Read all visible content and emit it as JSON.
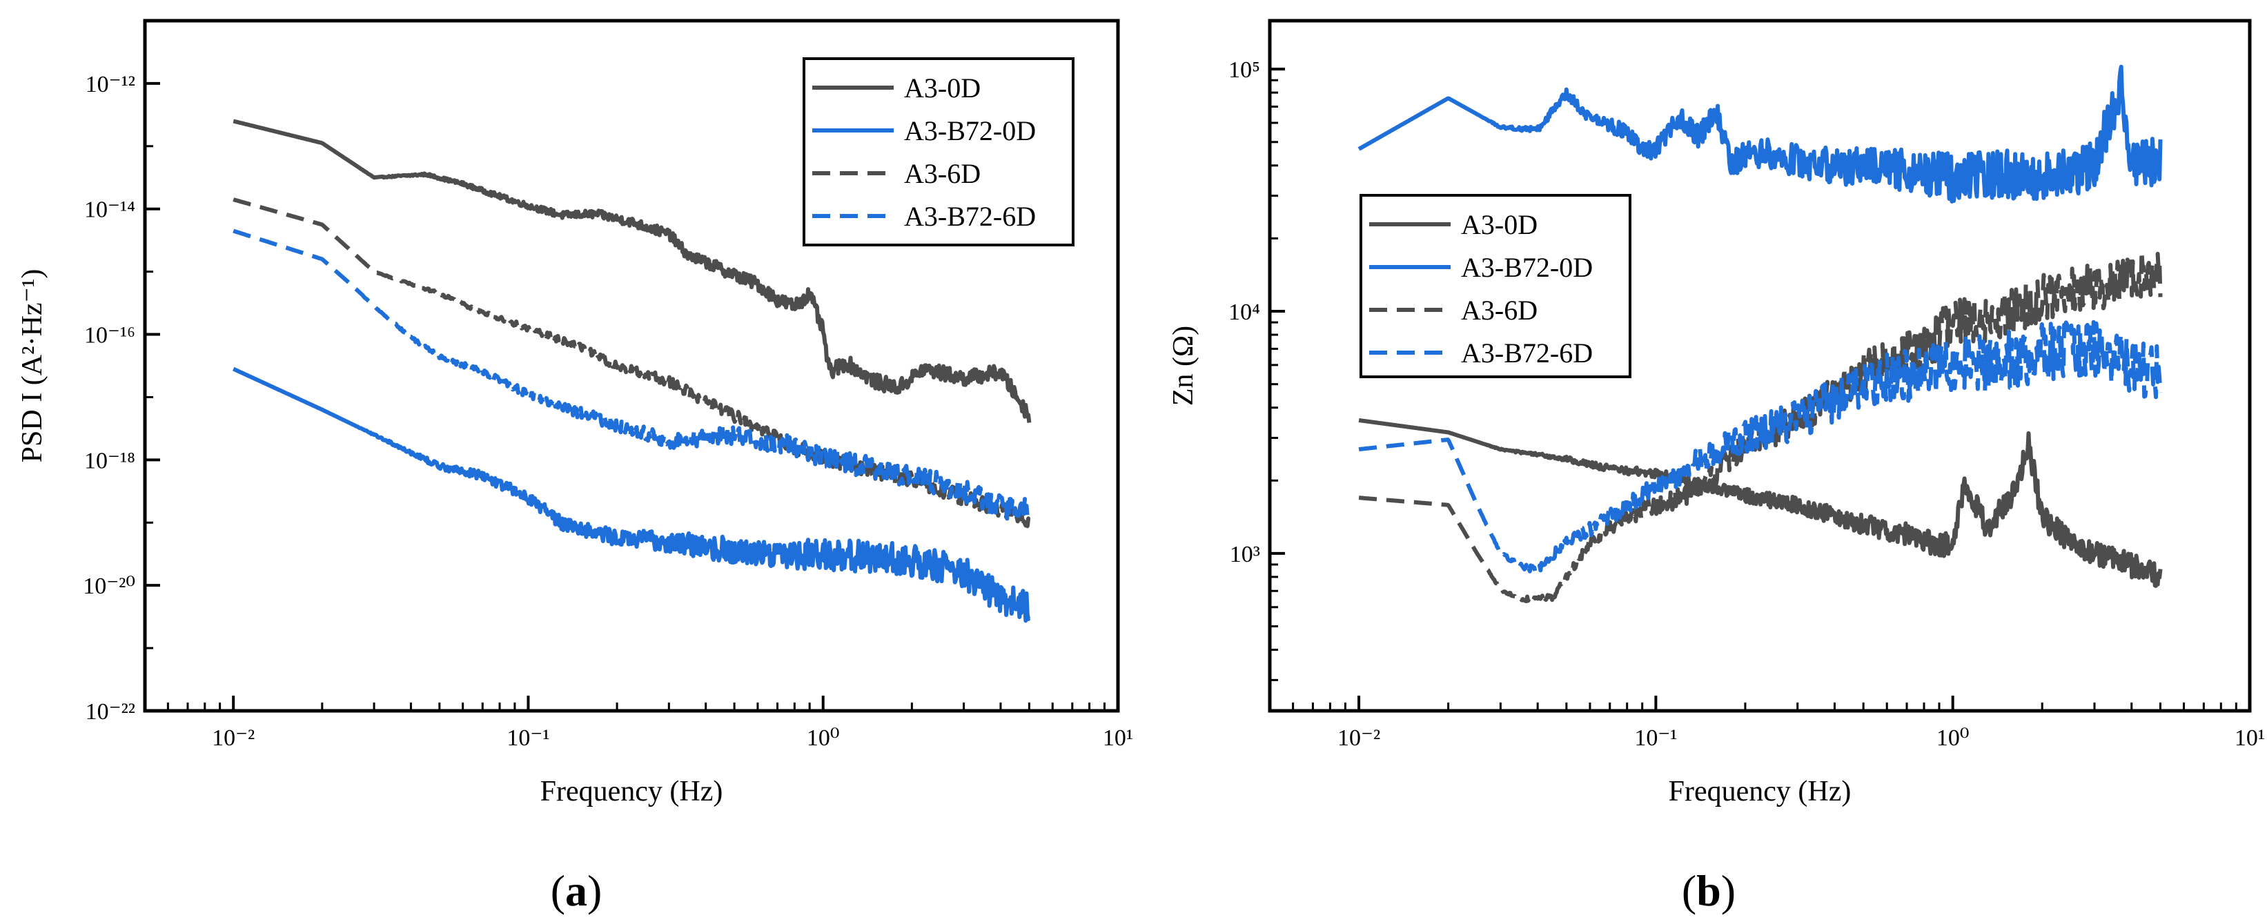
{
  "panel_labels": [
    "a",
    "b"
  ],
  "chart_data": [
    {
      "id": "a",
      "type": "line",
      "title": "",
      "xlabel": "Frequency (Hz)",
      "ylabel": "PSD I (A²·Hz⁻¹)",
      "x_scale": "log",
      "y_scale": "log",
      "xlim_exp": [
        -2.3,
        1
      ],
      "ylim_exp": [
        -22,
        -11
      ],
      "x_ticks": [
        {
          "exp": -2,
          "label": "10⁻²"
        },
        {
          "exp": -1,
          "label": "10⁻¹"
        },
        {
          "exp": 0,
          "label": "10⁰"
        },
        {
          "exp": 1,
          "label": "10¹"
        }
      ],
      "y_ticks": [
        {
          "exp": -22,
          "label": "10⁻²²"
        },
        {
          "exp": -20,
          "label": "10⁻²⁰"
        },
        {
          "exp": -18,
          "label": "10⁻¹⁸"
        },
        {
          "exp": -16,
          "label": "10⁻¹⁶"
        },
        {
          "exp": -14,
          "label": "10⁻¹⁴"
        },
        {
          "exp": -12,
          "label": "10⁻¹²"
        }
      ],
      "legend_position": "top-right",
      "series": [
        {
          "name": "A3-0D",
          "color": "#4d4d4d",
          "dash": "solid",
          "noise": 0.12,
          "x": [
            0.01,
            0.02,
            0.03,
            0.045,
            0.06,
            0.08,
            0.1,
            0.13,
            0.17,
            0.22,
            0.3,
            0.35,
            0.4,
            0.5,
            0.6,
            0.7,
            0.8,
            0.9,
            1.0,
            1.05,
            1.2,
            1.5,
            1.8,
            2.2,
            3.0,
            4.0,
            5.0
          ],
          "y_exp": [
            -12.6,
            -12.95,
            -13.5,
            -13.45,
            -13.6,
            -13.8,
            -13.95,
            -14.1,
            -14.08,
            -14.2,
            -14.4,
            -14.75,
            -14.85,
            -15.05,
            -15.2,
            -15.45,
            -15.55,
            -15.35,
            -15.95,
            -16.6,
            -16.45,
            -16.75,
            -16.85,
            -16.55,
            -16.7,
            -16.6,
            -17.3
          ]
        },
        {
          "name": "A3-B72-0D",
          "color": "#1e6fd9",
          "dash": "solid",
          "noise": 0.25,
          "x": [
            0.01,
            0.02,
            0.03,
            0.05,
            0.07,
            0.1,
            0.13,
            0.2,
            0.3,
            0.5,
            0.8,
            1.0,
            1.5,
            2.0,
            2.5,
            3.0,
            4.0,
            5.0
          ],
          "y_exp": [
            -16.55,
            -17.2,
            -17.6,
            -18.1,
            -18.25,
            -18.6,
            -19.0,
            -19.25,
            -19.3,
            -19.45,
            -19.5,
            -19.5,
            -19.55,
            -19.6,
            -19.7,
            -19.8,
            -20.2,
            -20.35
          ]
        },
        {
          "name": "A3-6D",
          "color": "#4d4d4d",
          "dash": "dashed",
          "noise": 0.12,
          "x": [
            0.01,
            0.02,
            0.03,
            0.05,
            0.07,
            0.1,
            0.15,
            0.2,
            0.3,
            0.5,
            0.8,
            1.0,
            1.5,
            2.0,
            3.0,
            4.0,
            5.0
          ],
          "y_exp": [
            -13.85,
            -14.25,
            -15.0,
            -15.35,
            -15.65,
            -15.9,
            -16.2,
            -16.5,
            -16.75,
            -17.3,
            -17.8,
            -17.95,
            -18.2,
            -18.3,
            -18.6,
            -18.8,
            -19.0
          ]
        },
        {
          "name": "A3-B72-6D",
          "color": "#1e6fd9",
          "dash": "dashed",
          "noise": 0.18,
          "x": [
            0.01,
            0.02,
            0.025,
            0.03,
            0.04,
            0.05,
            0.07,
            0.1,
            0.15,
            0.2,
            0.3,
            0.5,
            0.8,
            1.0,
            1.5,
            2.0,
            3.0,
            4.0,
            5.0
          ],
          "y_exp": [
            -14.35,
            -14.8,
            -15.2,
            -15.55,
            -16.05,
            -16.35,
            -16.6,
            -16.95,
            -17.25,
            -17.45,
            -17.7,
            -17.6,
            -17.8,
            -17.95,
            -18.15,
            -18.25,
            -18.5,
            -18.75,
            -18.8
          ]
        }
      ]
    },
    {
      "id": "b",
      "type": "line",
      "title": "",
      "xlabel": "Frequency (Hz)",
      "ylabel": "Zn (Ω)",
      "x_scale": "log",
      "y_scale": "log",
      "xlim_exp": [
        -2.3,
        1
      ],
      "ylim_exp": [
        2.35,
        5.2
      ],
      "x_ticks": [
        {
          "exp": -2,
          "label": "10⁻²"
        },
        {
          "exp": -1,
          "label": "10⁻¹"
        },
        {
          "exp": 0,
          "label": "10⁰"
        },
        {
          "exp": 1,
          "label": "10¹"
        }
      ],
      "y_ticks": [
        {
          "exp": 3,
          "label": "10³"
        },
        {
          "exp": 4,
          "label": "10⁴"
        },
        {
          "exp": 5,
          "label": "10⁵"
        }
      ],
      "legend_position": "center-left",
      "series": [
        {
          "name": "A3-0D",
          "color": "#4d4d4d",
          "dash": "solid",
          "noise": 0.05,
          "x": [
            0.01,
            0.02,
            0.03,
            0.05,
            0.07,
            0.1,
            0.15,
            0.2,
            0.3,
            0.5,
            0.7,
            0.8,
            1.0,
            1.1,
            1.3,
            1.6,
            1.8,
            2.0,
            2.5,
            3.0,
            4.0,
            5.0
          ],
          "y_exp": [
            3.55,
            3.5,
            3.43,
            3.39,
            3.35,
            3.33,
            3.28,
            3.24,
            3.2,
            3.12,
            3.08,
            3.05,
            3.03,
            3.3,
            3.1,
            3.25,
            3.45,
            3.15,
            3.05,
            3.0,
            2.95,
            2.9
          ]
        },
        {
          "name": "A3-B72-0D",
          "color": "#1e6fd9",
          "dash": "solid",
          "noise": 0.1,
          "x": [
            0.01,
            0.02,
            0.03,
            0.04,
            0.05,
            0.06,
            0.08,
            0.09,
            0.1,
            0.12,
            0.14,
            0.16,
            0.18,
            0.2,
            0.25,
            0.3,
            0.4,
            0.5,
            0.7,
            1.0,
            1.5,
            2.0,
            3.0,
            3.7,
            4.0,
            5.0
          ],
          "y_exp": [
            4.67,
            4.88,
            4.76,
            4.75,
            4.9,
            4.8,
            4.74,
            4.66,
            4.67,
            4.8,
            4.72,
            4.82,
            4.6,
            4.65,
            4.65,
            4.62,
            4.6,
            4.6,
            4.58,
            4.55,
            4.57,
            4.55,
            4.6,
            4.95,
            4.6,
            4.62
          ]
        },
        {
          "name": "A3-6D",
          "color": "#4d4d4d",
          "dash": "dashed",
          "noise": 0.1,
          "x": [
            0.01,
            0.02,
            0.025,
            0.03,
            0.035,
            0.045,
            0.05,
            0.06,
            0.08,
            0.1,
            0.12,
            0.15,
            0.2,
            0.3,
            0.5,
            0.8,
            1.0,
            1.5,
            2.0,
            3.0,
            4.0,
            5.0
          ],
          "y_exp": [
            3.23,
            3.2,
            3.0,
            2.85,
            2.81,
            2.82,
            2.9,
            3.05,
            3.15,
            3.2,
            3.23,
            3.3,
            3.45,
            3.55,
            3.75,
            3.85,
            3.95,
            3.98,
            4.05,
            4.1,
            4.15,
            4.15
          ]
        },
        {
          "name": "A3-B72-6D",
          "color": "#1e6fd9",
          "dash": "dashed",
          "noise": 0.12,
          "x": [
            0.01,
            0.02,
            0.025,
            0.03,
            0.035,
            0.04,
            0.05,
            0.06,
            0.08,
            0.1,
            0.12,
            0.15,
            0.2,
            0.3,
            0.5,
            0.8,
            1.0,
            1.5,
            2.0,
            3.0,
            4.0,
            5.0
          ],
          "y_exp": [
            3.43,
            3.47,
            3.2,
            3.0,
            2.95,
            2.93,
            3.05,
            3.1,
            3.2,
            3.28,
            3.33,
            3.4,
            3.48,
            3.55,
            3.7,
            3.75,
            3.78,
            3.8,
            3.83,
            3.85,
            3.78,
            3.75
          ]
        }
      ]
    }
  ]
}
